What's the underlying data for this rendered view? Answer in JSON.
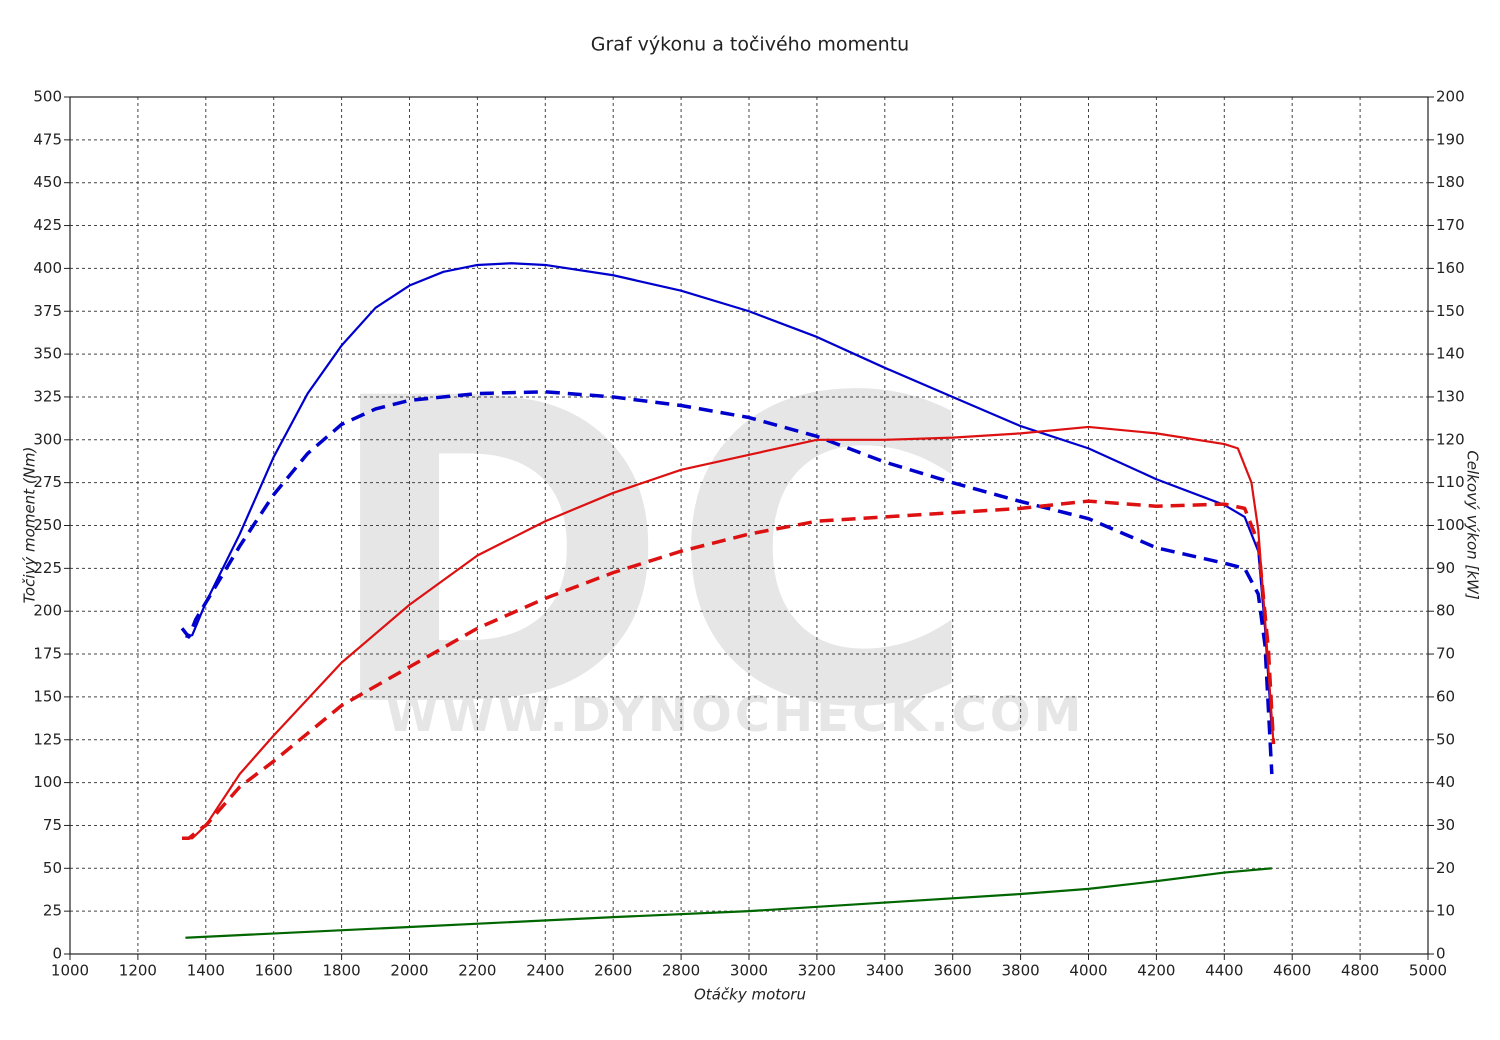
{
  "chart_data": {
    "type": "line",
    "title": "Graf výkonu a točivého momentu",
    "x_label": "Otáčky motoru",
    "y_label": "Točivý moment (Nm)",
    "y2_label": "Celkový výkon [kW]",
    "watermark": "DC",
    "watermark_url": "WWW.DYNOCHECK.COM",
    "xlim": [
      1000,
      5000
    ],
    "xticks": [
      1000,
      1200,
      1400,
      1600,
      1800,
      2000,
      2200,
      2400,
      2600,
      2800,
      3000,
      3200,
      3400,
      3600,
      3800,
      4000,
      4200,
      4400,
      4600,
      4800,
      5000
    ],
    "ylim": [
      0,
      500
    ],
    "yticks": [
      0,
      25,
      50,
      75,
      100,
      125,
      150,
      175,
      200,
      225,
      250,
      275,
      300,
      325,
      350,
      375,
      400,
      425,
      450,
      475,
      500
    ],
    "y2lim": [
      0,
      200
    ],
    "y2ticks": [
      0,
      10,
      20,
      30,
      40,
      50,
      60,
      70,
      80,
      90,
      100,
      110,
      120,
      130,
      140,
      150,
      160,
      170,
      180,
      190,
      200
    ],
    "grid": true,
    "series": [
      {
        "color": "#0000cc",
        "dash": false,
        "x": [
          1340,
          1360,
          1400,
          1500,
          1600,
          1700,
          1800,
          1900,
          2000,
          2100,
          2200,
          2300,
          2400,
          2600,
          2800,
          3000,
          3200,
          3400,
          3600,
          3800,
          4000,
          4200,
          4400,
          4460,
          4500,
          4520,
          4540
        ],
        "values": [
          185,
          186,
          205,
          245,
          290,
          327,
          355,
          377,
          390,
          398,
          402,
          403,
          402,
          396,
          387,
          375,
          360,
          342,
          325,
          308,
          295,
          277,
          262,
          255,
          235,
          190,
          130
        ]
      },
      {
        "color": "#0000cc",
        "dash": true,
        "x": [
          1330,
          1350,
          1370,
          1400,
          1500,
          1600,
          1700,
          1800,
          1900,
          2000,
          2200,
          2400,
          2600,
          2800,
          3000,
          3200,
          3400,
          3600,
          3800,
          4000,
          4200,
          4400,
          4460,
          4500,
          4520,
          4540
        ],
        "values": [
          190,
          185,
          195,
          205,
          238,
          268,
          292,
          309,
          318,
          323,
          327,
          328,
          325,
          320,
          313,
          302,
          287,
          275,
          264,
          254,
          237,
          228,
          225,
          210,
          180,
          105
        ]
      },
      {
        "color": "#dd1111",
        "dash": false,
        "axis": "y2",
        "x": [
          1330,
          1360,
          1400,
          1500,
          1600,
          1800,
          2000,
          2200,
          2400,
          2600,
          2800,
          3000,
          3200,
          3400,
          3600,
          3800,
          4000,
          4200,
          4400,
          4440,
          4480,
          4500,
          4520,
          4545
        ],
        "values": [
          27,
          27,
          30,
          42,
          51,
          68,
          81.5,
          93,
          101,
          107.6,
          113,
          116.5,
          120,
          120,
          120.5,
          121.5,
          123,
          121.5,
          119,
          118,
          110,
          99,
          78,
          49
        ]
      },
      {
        "color": "#dd1111",
        "dash": true,
        "axis": "y2",
        "x": [
          1330,
          1350,
          1380,
          1400,
          1500,
          1600,
          1800,
          2000,
          2200,
          2400,
          2600,
          2800,
          3000,
          3200,
          3400,
          3600,
          3800,
          4000,
          4200,
          4400,
          4460,
          4500,
          4530,
          4545
        ],
        "values": [
          27,
          27,
          29,
          30,
          39,
          45,
          58,
          67,
          76,
          83,
          89,
          94,
          98,
          101,
          102,
          103,
          104,
          105.7,
          104.5,
          105,
          104,
          96,
          71,
          49
        ]
      },
      {
        "color": "#006600",
        "dash": false,
        "axis": "y2",
        "x": [
          1340,
          2000,
          2600,
          3000,
          3400,
          3800,
          4000,
          4200,
          4400,
          4540
        ],
        "values": [
          3.8,
          6.3,
          8.6,
          10,
          12,
          14,
          15.2,
          17,
          19,
          20
        ]
      }
    ]
  }
}
